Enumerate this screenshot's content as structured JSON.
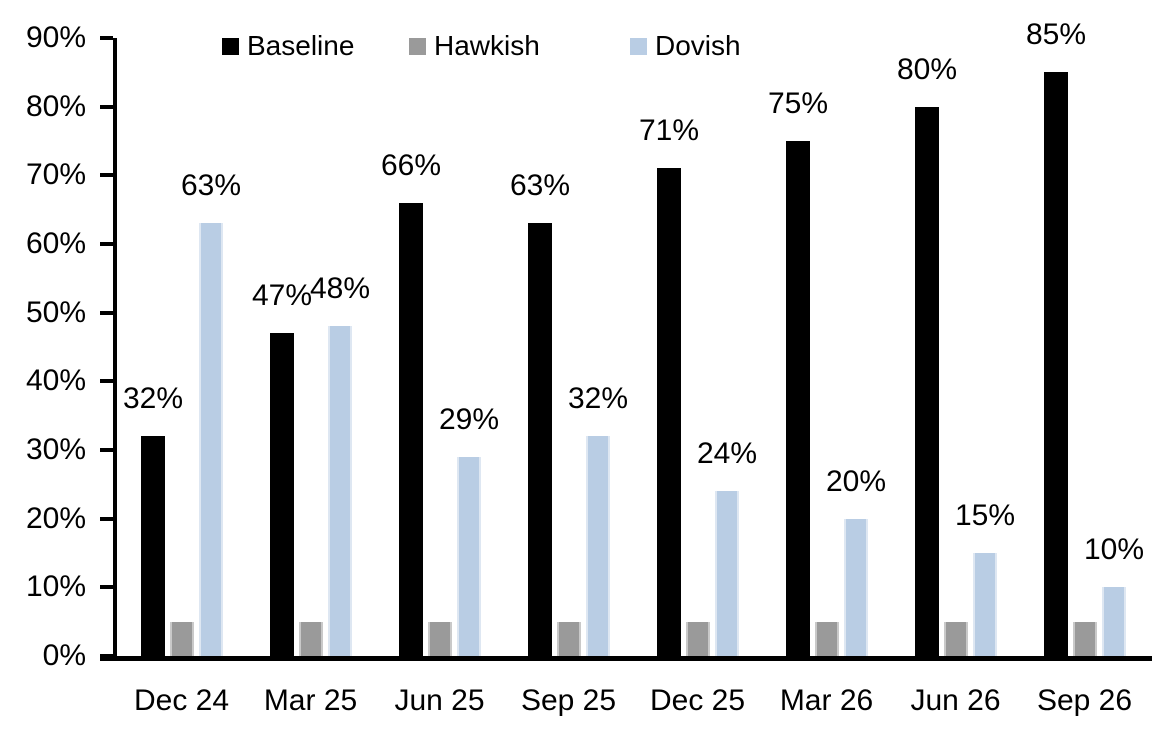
{
  "chart_data": {
    "type": "bar",
    "title": "",
    "xlabel": "",
    "ylabel": "",
    "grid": false,
    "legend_position": "top",
    "ylim": [
      0,
      90
    ],
    "ytick_step": 10,
    "ytick_labels": [
      "0%",
      "10%",
      "20%",
      "30%",
      "40%",
      "50%",
      "60%",
      "70%",
      "80%",
      "90%"
    ],
    "categories": [
      "Dec 24",
      "Mar 25",
      "Jun 25",
      "Sep 25",
      "Dec 25",
      "Mar 26",
      "Jun 26",
      "Sep 26"
    ],
    "series": [
      {
        "name": "Baseline",
        "color": "#000000",
        "edge_color": "",
        "show_labels": true,
        "values": [
          32,
          47,
          66,
          63,
          71,
          75,
          80,
          85
        ],
        "labels": [
          "32%",
          "47%",
          "66%",
          "63%",
          "71%",
          "75%",
          "80%",
          "85%"
        ]
      },
      {
        "name": "Hawkish",
        "color": "#9A9A9A",
        "edge_color": "#C9C9C9",
        "show_labels": false,
        "values": [
          5,
          5,
          5,
          5,
          5,
          5,
          5,
          5
        ],
        "labels": [
          "5%",
          "5%",
          "5%",
          "5%",
          "5%",
          "5%",
          "5%",
          "5%"
        ]
      },
      {
        "name": "Dovish",
        "color": "#B9CDE4",
        "edge_color": "#DEE7F2",
        "show_labels": true,
        "values": [
          63,
          48,
          29,
          32,
          24,
          20,
          15,
          10
        ],
        "labels": [
          "63%",
          "48%",
          "29%",
          "32%",
          "24%",
          "20%",
          "15%",
          "10%"
        ]
      }
    ],
    "axis_color": "#000000",
    "text_color": "#000000"
  }
}
